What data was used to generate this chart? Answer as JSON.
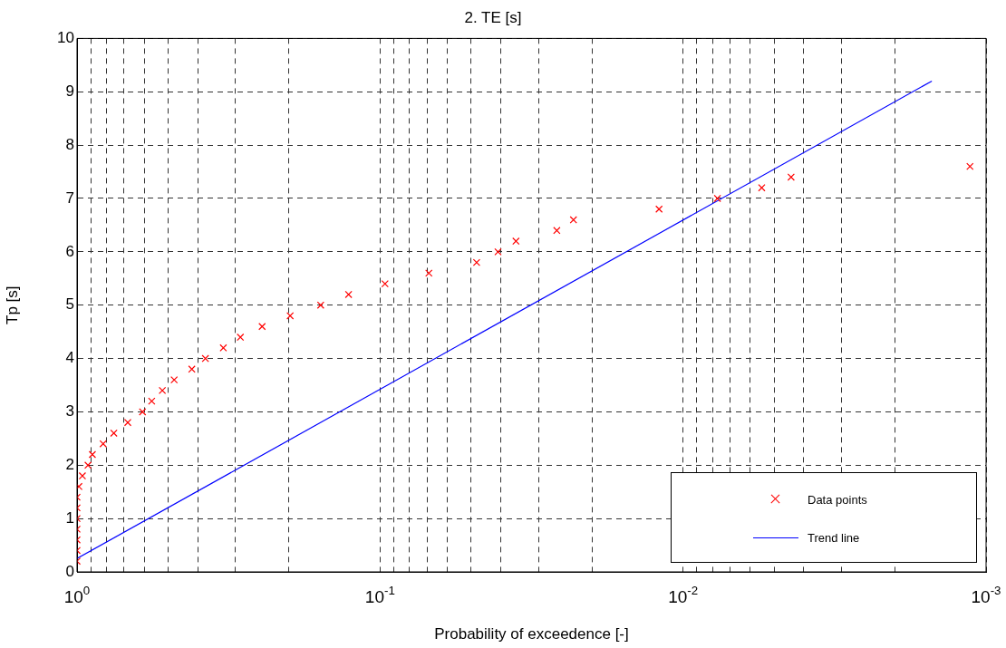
{
  "chart_data": {
    "type": "scatter",
    "title": "2. TE [s]",
    "xlabel": "Probability of exceedence [-]",
    "ylabel": "Tp [s]",
    "log": "x",
    "xlim": [
      1,
      0.001
    ],
    "ylim": [
      0,
      10
    ],
    "xticks": [
      {
        "value": 1,
        "label": "10$^{0}$"
      },
      {
        "value": 0.9,
        "label": null
      },
      {
        "value": 0.8,
        "label": null
      },
      {
        "value": 0.7,
        "label": null
      },
      {
        "value": 0.6,
        "label": null
      },
      {
        "value": 0.5,
        "label": null
      },
      {
        "value": 0.4,
        "label": null
      },
      {
        "value": 0.3,
        "label": null
      },
      {
        "value": 0.2,
        "label": null
      },
      {
        "value": 0.1,
        "label": "10$^{-1}$"
      },
      {
        "value": 0.09,
        "label": null
      },
      {
        "value": 0.08,
        "label": null
      },
      {
        "value": 0.07,
        "label": null
      },
      {
        "value": 0.06,
        "label": null
      },
      {
        "value": 0.05,
        "label": null
      },
      {
        "value": 0.04,
        "label": null
      },
      {
        "value": 0.03,
        "label": null
      },
      {
        "value": 0.02,
        "label": null
      },
      {
        "value": 0.01,
        "label": "10$^{-2}$"
      },
      {
        "value": 0.009,
        "label": null
      },
      {
        "value": 0.008,
        "label": null
      },
      {
        "value": 0.007,
        "label": null
      },
      {
        "value": 0.006,
        "label": null
      },
      {
        "value": 0.005,
        "label": null
      },
      {
        "value": 0.004,
        "label": null
      },
      {
        "value": 0.003,
        "label": null
      },
      {
        "value": 0.002,
        "label": null
      },
      {
        "value": 0.001,
        "label": "10$^{-3}$"
      }
    ],
    "yticks": [
      0,
      1,
      2,
      3,
      4,
      5,
      6,
      7,
      8,
      9,
      10
    ],
    "grid": true,
    "legend": "bottom right",
    "series": [
      {
        "name": "Data points",
        "type": "scatter",
        "marker": "cross",
        "color": "#ff0000",
        "x": [
          1,
          1,
          1,
          1,
          1,
          1,
          1,
          0.986,
          0.96,
          0.92,
          0.89,
          0.82,
          0.756,
          0.68,
          0.608,
          0.567,
          0.523,
          0.478,
          0.418,
          0.377,
          0.329,
          0.289,
          0.245,
          0.198,
          0.157,
          0.127,
          0.0963,
          0.069,
          0.048,
          0.0408,
          0.0356,
          0.0261,
          0.023,
          0.012,
          0.0077,
          0.0055,
          0.0044,
          0.00113
        ],
        "values": [
          0.2,
          0.4,
          0.6,
          0.8,
          1.0,
          1.2,
          1.4,
          1.6,
          1.8,
          2.0,
          2.2,
          2.4,
          2.6,
          2.8,
          3.0,
          3.2,
          3.4,
          3.6,
          3.8,
          4.0,
          4.2,
          4.4,
          4.6,
          4.8,
          5.0,
          5.2,
          5.4,
          5.6,
          5.8,
          6.0,
          6.2,
          6.4,
          6.6,
          6.8,
          7.0,
          7.2,
          7.4,
          7.6
        ]
      },
      {
        "name": "Trend line",
        "type": "line",
        "marker": "none",
        "line_style": "solid",
        "color": "#0000ff",
        "x": [
          1,
          0.00151
        ],
        "values": [
          0.25,
          9.2
        ]
      }
    ]
  }
}
